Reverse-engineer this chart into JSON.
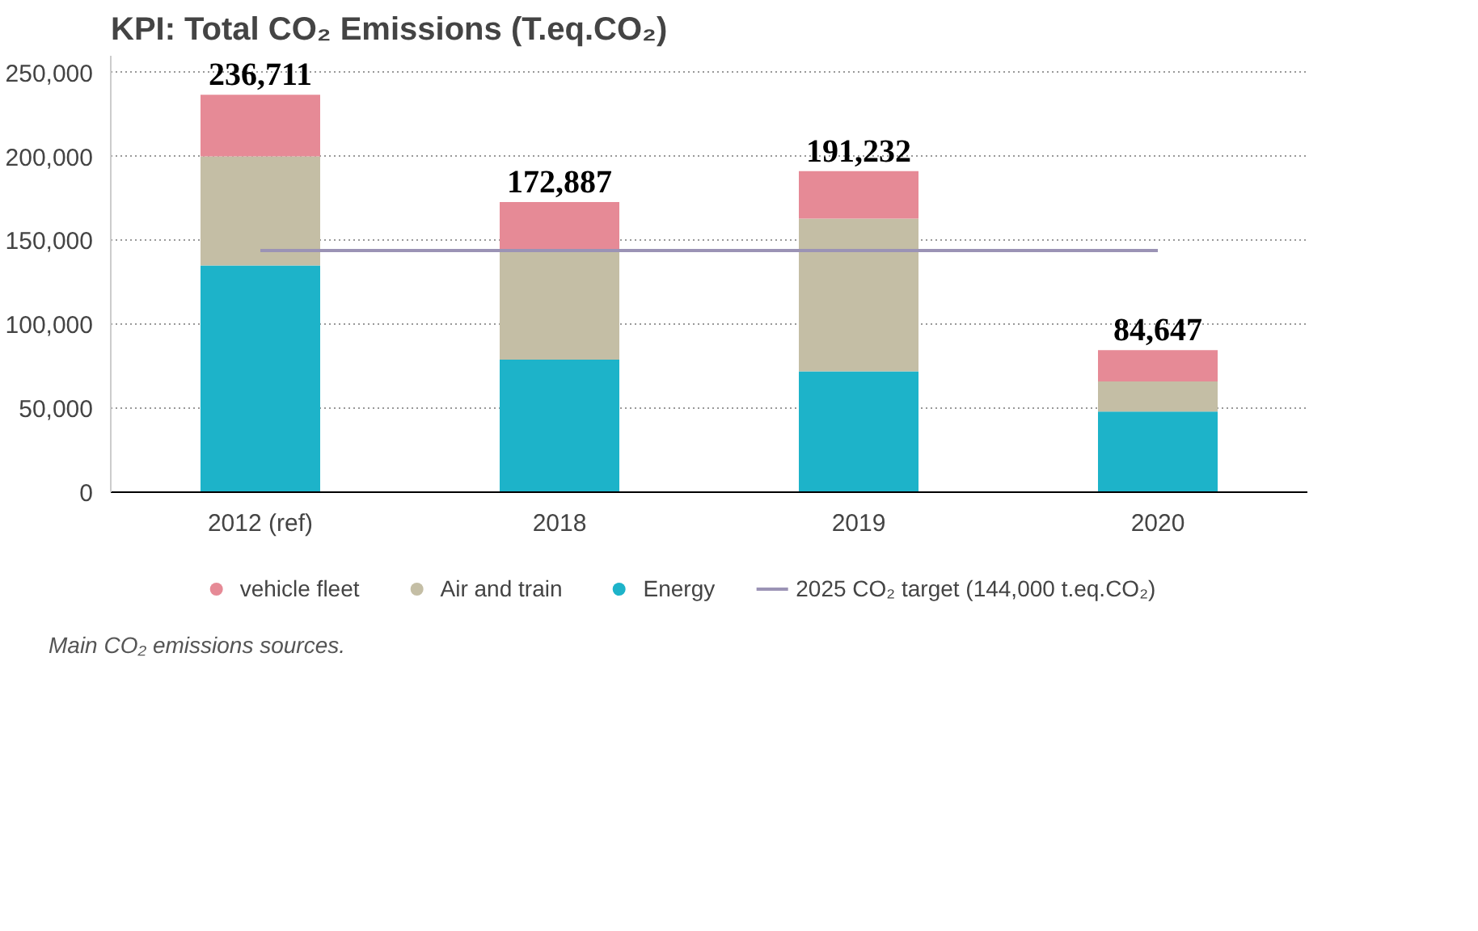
{
  "chart_data": {
    "type": "bar",
    "stacked": true,
    "title": "KPI: Total CO₂ Emissions (T.eq.CO₂)",
    "categories": [
      "2012 (ref)",
      "2018",
      "2019",
      "2020"
    ],
    "series": [
      {
        "name": "Energy",
        "color": "#1db3c9",
        "values": [
          135000,
          79000,
          72000,
          48000
        ]
      },
      {
        "name": "Air and train",
        "color": "#c4bea5",
        "values": [
          65000,
          64000,
          91000,
          18000
        ]
      },
      {
        "name": "vehicle fleet",
        "color": "#e68a96",
        "values": [
          36711,
          29887,
          28232,
          18647
        ]
      }
    ],
    "totals": [
      "236,711",
      "172,887",
      "191,232",
      "84,647"
    ],
    "ref_lines": [
      {
        "axis": "y",
        "value": 144000,
        "label": "2025 CO₂ target (144,000 t.eq.CO₂)",
        "color": "#9b93b5",
        "line_style": "solid"
      }
    ],
    "ylim": [
      0,
      260000
    ],
    "yticks": [
      {
        "value": 0,
        "label": "0"
      },
      {
        "value": 50000,
        "label": "50,000"
      },
      {
        "value": 100000,
        "label": "100,000"
      },
      {
        "value": 150000,
        "label": "150,000"
      },
      {
        "value": 200000,
        "label": "200,000"
      },
      {
        "value": 250000,
        "label": "250,000"
      }
    ],
    "grid": "y",
    "legend": "bottom",
    "annotations": [
      "Main CO₂ emissions sources."
    ]
  }
}
